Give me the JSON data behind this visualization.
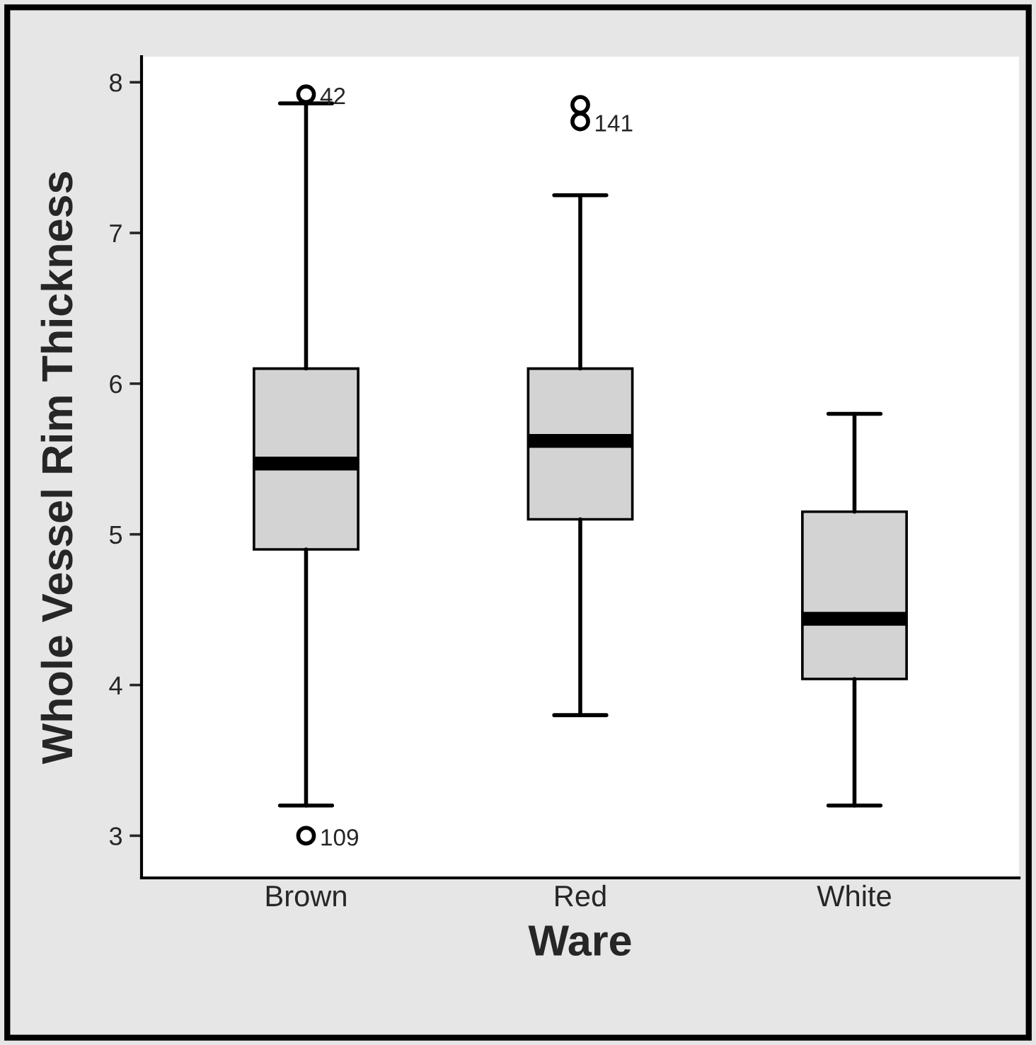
{
  "chart_data": {
    "type": "box",
    "xlabel": "Ware",
    "ylabel": "Whole Vessel Rim Thickness",
    "categories": [
      "Brown",
      "Red",
      "White"
    ],
    "boxes": [
      {
        "low": 3.2,
        "q1": 4.9,
        "median": 5.47,
        "q3": 6.1,
        "high": 7.86,
        "outliers": [
          7.92,
          3.0
        ]
      },
      {
        "low": 3.8,
        "q1": 5.1,
        "median": 5.62,
        "q3": 6.1,
        "high": 7.25,
        "outliers": [
          7.74,
          7.85
        ]
      },
      {
        "low": 3.2,
        "q1": 4.04,
        "median": 4.44,
        "q3": 5.15,
        "high": 5.8
      }
    ],
    "color": "#d3d3d3",
    "ylim": [
      2.72,
      8.17
    ],
    "yticks": [
      3,
      4,
      5,
      6,
      7,
      8
    ],
    "grid": false,
    "annotations": [
      "42",
      "109",
      "141"
    ]
  }
}
